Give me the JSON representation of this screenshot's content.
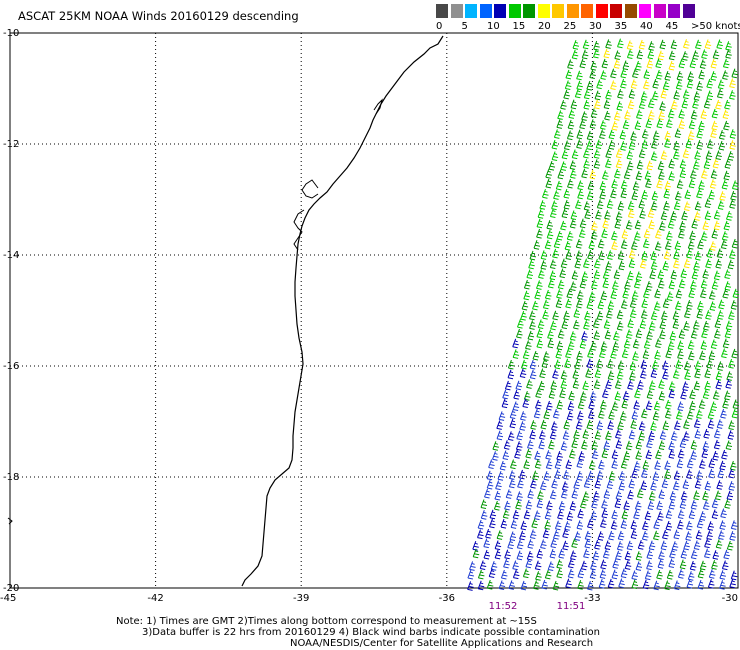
{
  "title": "ASCAT 25KM NOAA Winds 20160129 descending",
  "scale": {
    "colors": [
      "#484848",
      "#909090",
      "#00b4ff",
      "#0064ff",
      "#0000b4",
      "#00c800",
      "#009600",
      "#ffff00",
      "#ffc800",
      "#ff9600",
      "#ff6400",
      "#ff0000",
      "#c80000",
      "#964b00",
      "#ff00ff",
      "#c800c8",
      "#9600c8",
      "#500096"
    ],
    "labels": [
      "0",
      "5",
      "10",
      "15",
      "20",
      "25",
      "30",
      "35",
      "40",
      "45",
      ">50 knots"
    ]
  },
  "axes": {
    "lon": [
      "-45",
      "-42",
      "-39",
      "-36",
      "-33",
      "-30"
    ],
    "lat": [
      "-10",
      "-12",
      "-14",
      "-16",
      "-18",
      "-20"
    ]
  },
  "times": [
    "11:52",
    "11:51"
  ],
  "notes": [
    "Note: 1) Times are GMT 2)Times along bottom correspond to measurement at ~15S",
    "3)Data buffer is 22 hrs from 20160129 4) Black wind barbs indicate possible contamination",
    "NOAA/NESDIS/Center for Satellite Applications and Research"
  ]
}
